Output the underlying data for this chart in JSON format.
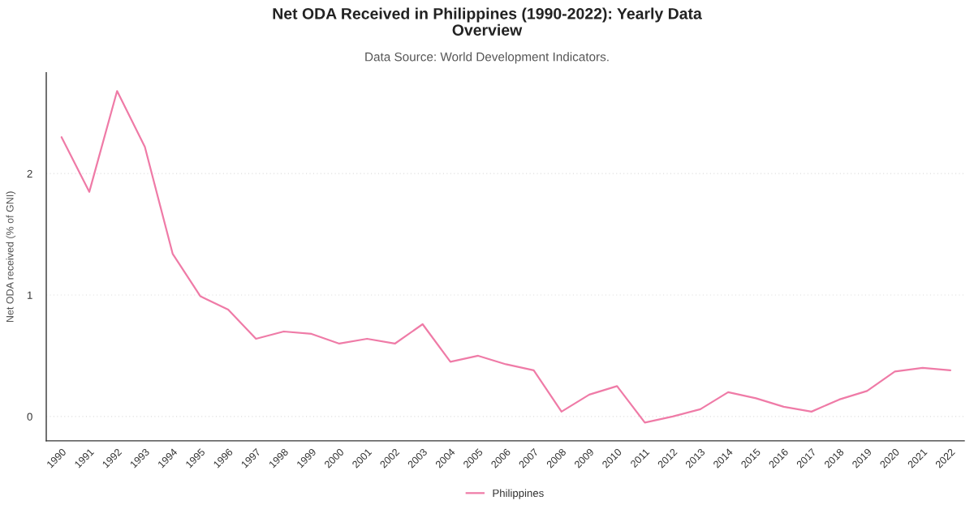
{
  "chart_data": {
    "type": "line",
    "title": "Net ODA Received in Philippines (1990-2022): Yearly Data Overview",
    "subtitle": "Data Source: World Development Indicators.",
    "ylabel": "Net ODA received (% of GNI)",
    "categories": [
      "1990",
      "1991",
      "1992",
      "1993",
      "1994",
      "1995",
      "1996",
      "1997",
      "1998",
      "1999",
      "2000",
      "2001",
      "2002",
      "2003",
      "2004",
      "2005",
      "2006",
      "2007",
      "2008",
      "2009",
      "2010",
      "2011",
      "2012",
      "2013",
      "2014",
      "2015",
      "2016",
      "2017",
      "2018",
      "2019",
      "2020",
      "2021",
      "2022"
    ],
    "series": [
      {
        "name": "Philippines",
        "color": "#ef7ba7",
        "values": [
          2.3,
          1.85,
          2.68,
          2.22,
          1.34,
          0.99,
          0.88,
          0.64,
          0.7,
          0.68,
          0.6,
          0.64,
          0.6,
          0.76,
          0.45,
          0.5,
          0.43,
          0.38,
          0.04,
          0.18,
          0.25,
          -0.05,
          0.0,
          0.06,
          0.2,
          0.15,
          0.08,
          0.04,
          0.14,
          0.21,
          0.37,
          0.4,
          0.38
        ]
      }
    ],
    "ylim": [
      -0.2,
      2.83
    ],
    "yticks": [
      0,
      1,
      2
    ],
    "grid": "y",
    "legend": "bottom",
    "marker": "none",
    "line_style": "solid"
  }
}
